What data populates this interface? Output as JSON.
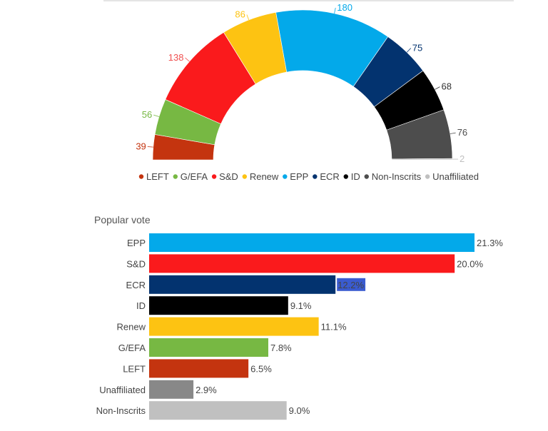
{
  "chart_data": [
    {
      "type": "pie",
      "subtype": "hemicycle",
      "categories": [
        "LEFT",
        "G/EFA",
        "S&D",
        "Renew",
        "EPP",
        "ECR",
        "ID",
        "Non-Inscrits",
        "Unaffiliated"
      ],
      "values": [
        39,
        56,
        138,
        86,
        180,
        75,
        68,
        76,
        2
      ],
      "colors": [
        "#c4340f",
        "#77b843",
        "#fa1a1c",
        "#fdc312",
        "#03a9ea",
        "#03336f",
        "#000000",
        "#4d4d4d",
        "#c0c0c0"
      ],
      "label_colors": [
        "#c4340f",
        "#77b843",
        "#f05050",
        "#fdc312",
        "#03a9ea",
        "#03336f",
        "#333333",
        "#4d4d4d",
        "#c0c0c0"
      ],
      "legend": "bottom"
    },
    {
      "type": "bar",
      "orientation": "horizontal",
      "title": "Popular vote",
      "categories": [
        "EPP",
        "S&D",
        "ECR",
        "ID",
        "Renew",
        "G/EFA",
        "LEFT",
        "Unaffiliated",
        "Non-Inscrits"
      ],
      "values": [
        21.3,
        20.0,
        12.2,
        9.1,
        11.1,
        7.8,
        6.5,
        2.9,
        9.0
      ],
      "value_labels": [
        "21.3%",
        "20.0%",
        "12.2%",
        "9.1%",
        "11.1%",
        "7.8%",
        "6.5%",
        "2.9%",
        "9.0%"
      ],
      "colors": [
        "#03a9ea",
        "#fa1a1c",
        "#03336f",
        "#000000",
        "#fdc312",
        "#77b843",
        "#c4340f",
        "#888888",
        "#c0c0c0"
      ],
      "highlighted_label": "ECR",
      "highlight_color": "#3a5bd0",
      "grid": false
    }
  ]
}
